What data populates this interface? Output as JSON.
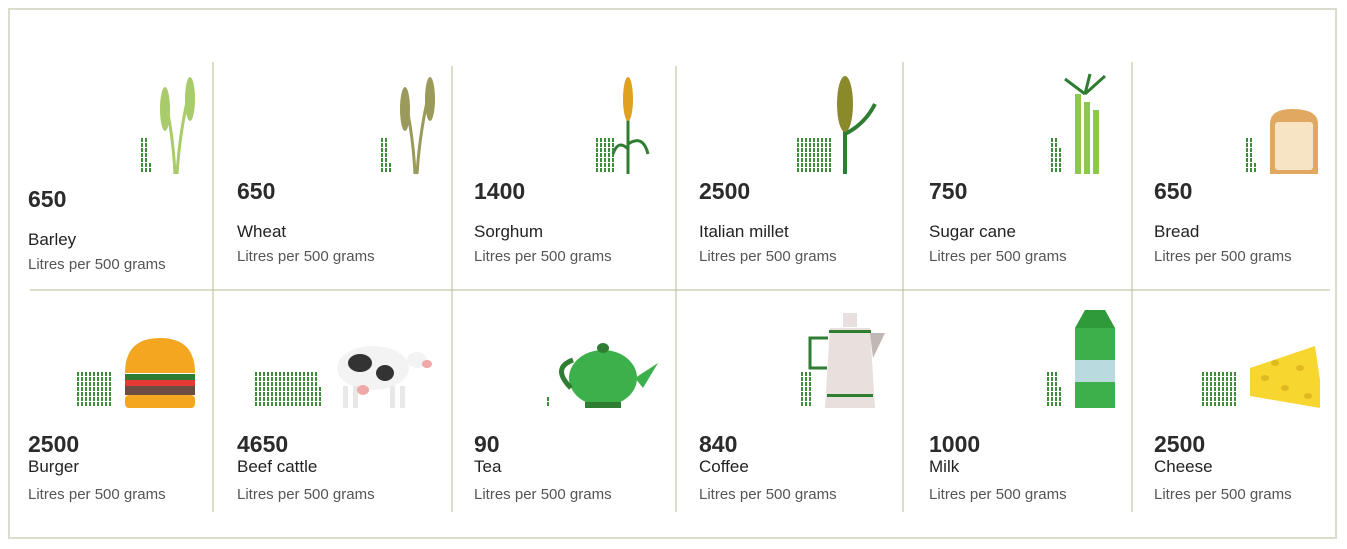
{
  "items": [
    {
      "value": 650,
      "name": "Barley",
      "unit": "Litres per 500 grams"
    },
    {
      "value": 650,
      "name": "Wheat",
      "unit": "Litres per 500 grams"
    },
    {
      "value": 1400,
      "name": "Sorghum",
      "unit": "Litres per 500 grams"
    },
    {
      "value": 2500,
      "name": "Italian millet",
      "unit": "Litres per 500 grams"
    },
    {
      "value": 750,
      "name": "Sugar cane",
      "unit": "Litres per 500 grams"
    },
    {
      "value": 650,
      "name": "Bread",
      "unit": "Litres per 500 grams"
    },
    {
      "value": 2500,
      "name": "Burger",
      "unit": "Litres per 500 grams"
    },
    {
      "value": 4650,
      "name": "Beef cattle",
      "unit": "Litres per 500 grams"
    },
    {
      "value": 90,
      "name": "Tea",
      "unit": "Litres per 500 grams"
    },
    {
      "value": 840,
      "name": "Coffee",
      "unit": "Litres per 500 grams"
    },
    {
      "value": 1000,
      "name": "Milk",
      "unit": "Litres per 500 grams"
    },
    {
      "value": 2500,
      "name": "Cheese",
      "unit": "Litres per 500 grams"
    }
  ]
}
